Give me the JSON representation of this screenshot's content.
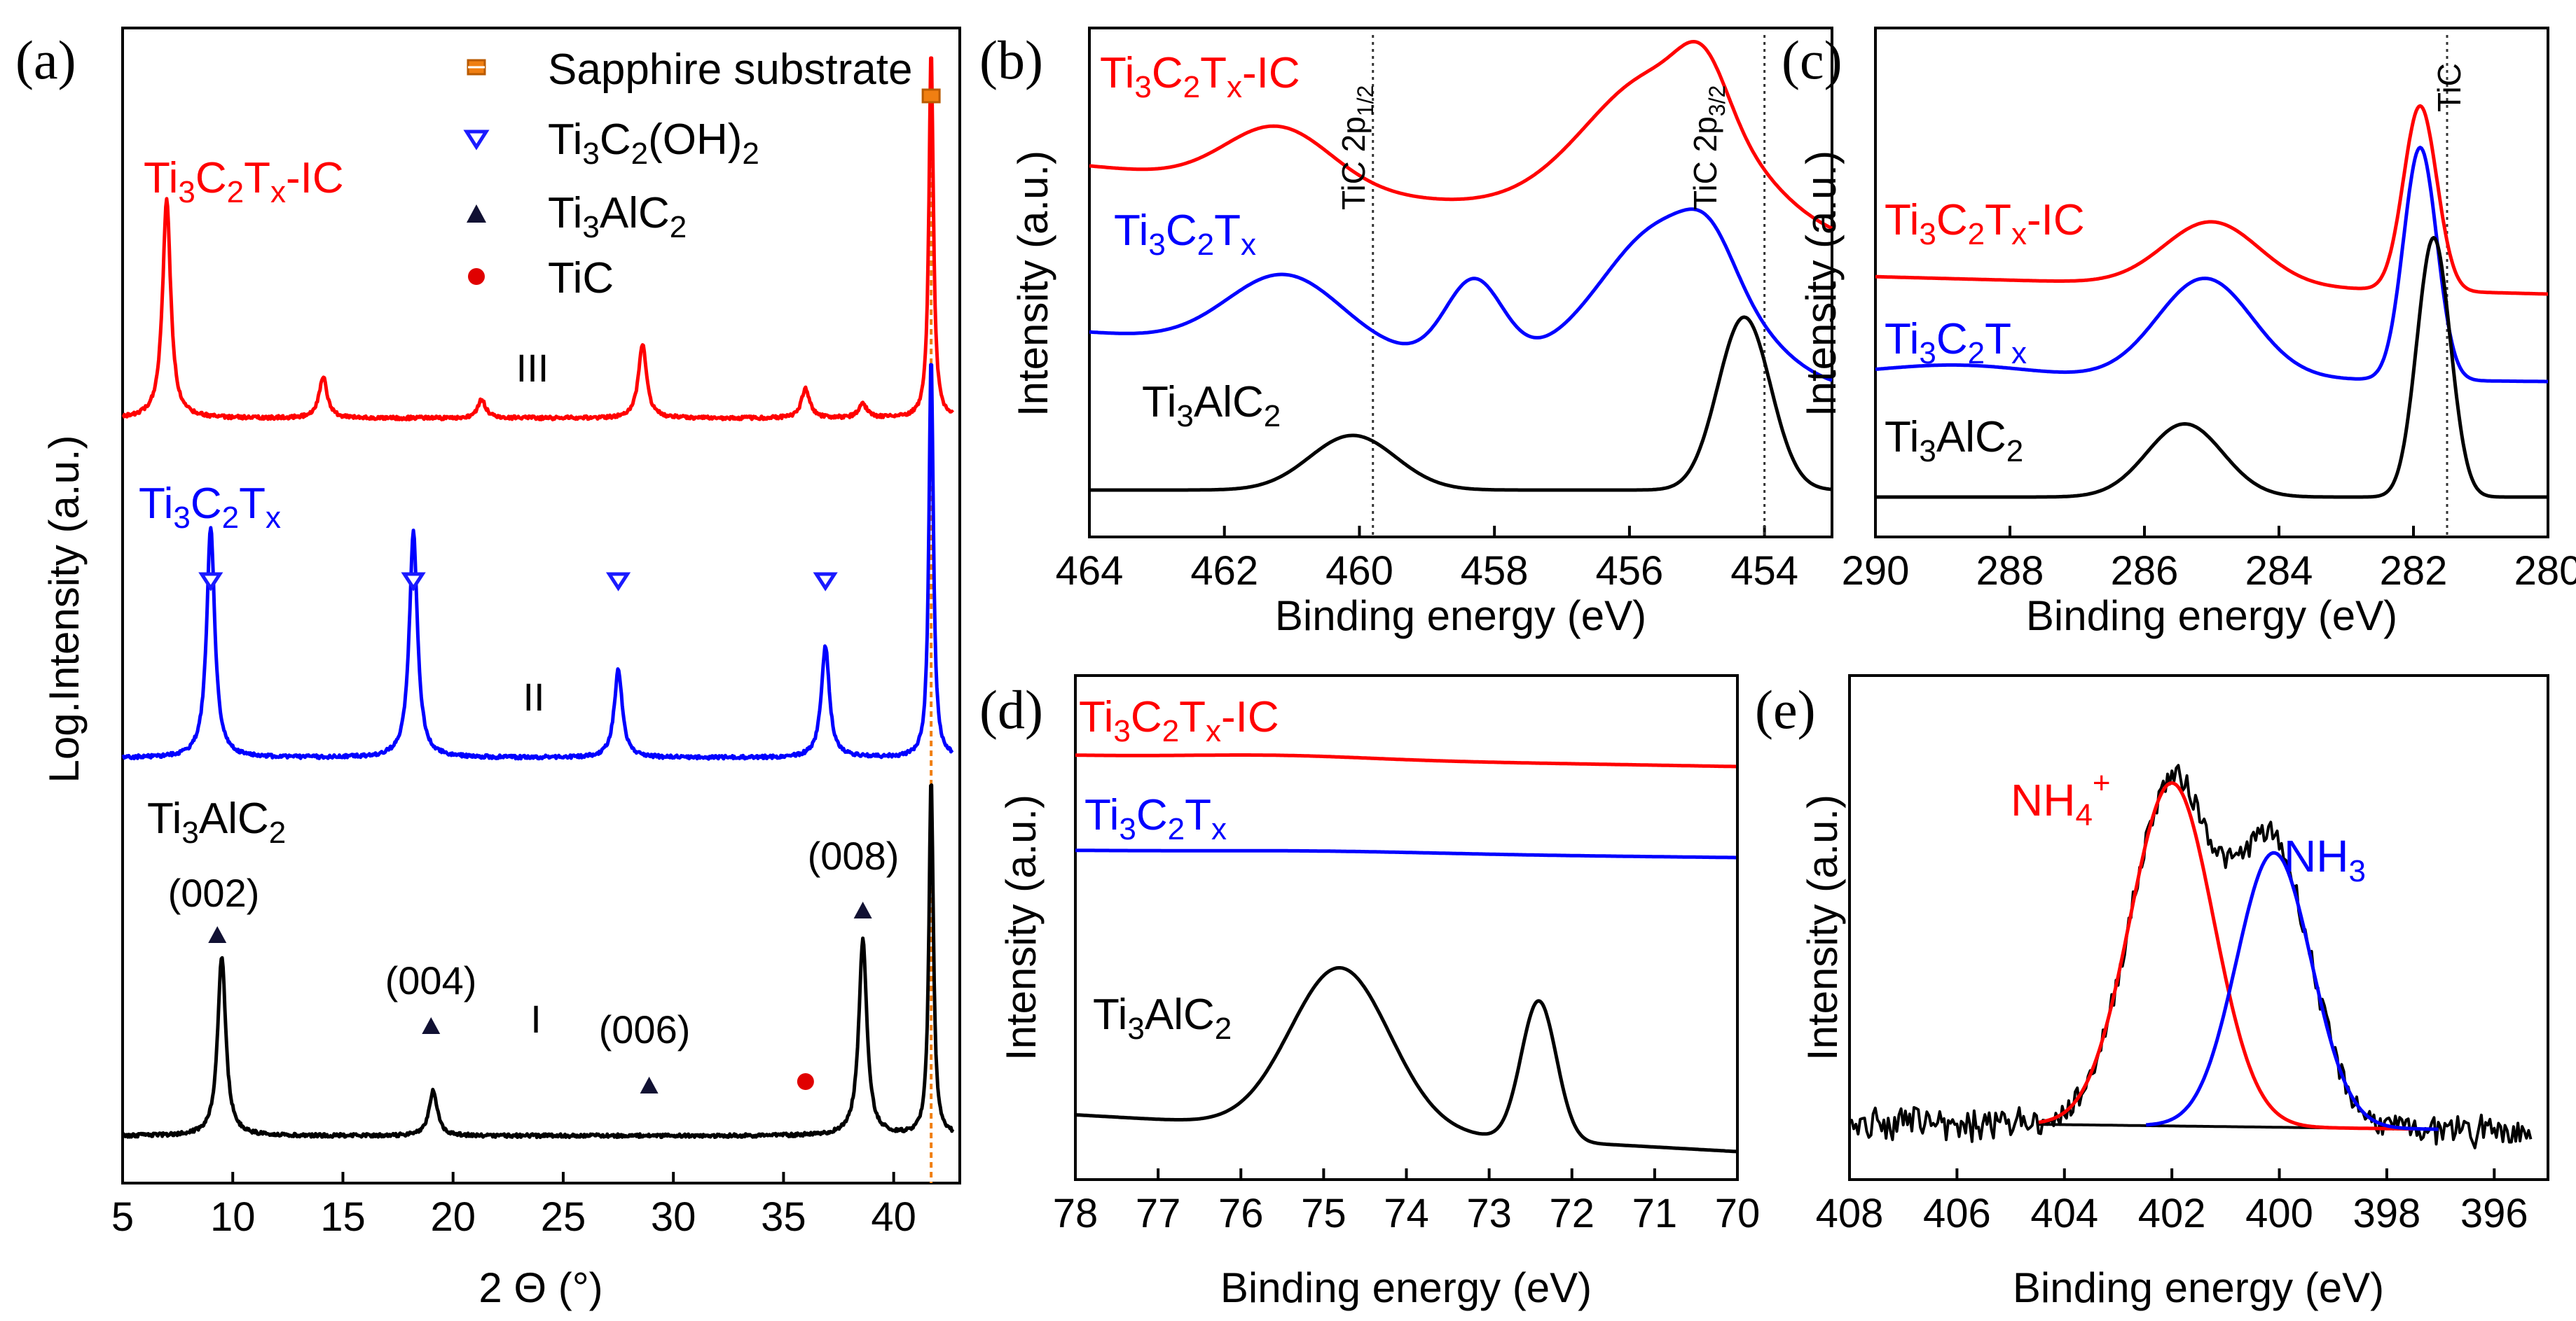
{
  "chart_data": [
    {
      "panel_label": "(a)",
      "type": "line",
      "title": "",
      "xlabel": "2 Θ (°)",
      "ylabel": "Log.Intensity (a.u.)",
      "xlim": [
        5,
        43
      ],
      "xticks": [
        "5",
        "10",
        "15",
        "20",
        "25",
        "30",
        "35",
        "40"
      ],
      "legend": [
        {
          "marker": "square",
          "label": "Sapphire substrate",
          "color": "#f07f12"
        },
        {
          "marker": "triangle-down-open",
          "label": "Ti3C2(OH)2",
          "color": "#1a1aff"
        },
        {
          "marker": "triangle-up",
          "label": "Ti3AlC2",
          "color": "#111133"
        },
        {
          "marker": "circle",
          "label": "TiC",
          "color": "#e00000"
        }
      ],
      "series": [
        {
          "name": "Ti3C2Tx-IC",
          "label_main": "Ti",
          "roman": "III",
          "color": "#ff0000",
          "offset": 2,
          "peaks": [
            {
              "x": 7.0,
              "h": 0.95
            },
            {
              "x": 14.1,
              "h": 0.18
            },
            {
              "x": 21.3,
              "h": 0.08
            },
            {
              "x": 28.6,
              "h": 0.32
            },
            {
              "x": 36.0,
              "h": 0.13
            },
            {
              "x": 38.6,
              "h": 0.06
            },
            {
              "x": 41.7,
              "h": 1.6
            }
          ]
        },
        {
          "name": "Ti3C2Tx",
          "roman": "II",
          "color": "#0000ff",
          "offset": 1,
          "peaks": [
            {
              "x": 9.0,
              "h": 1.0
            },
            {
              "x": 18.2,
              "h": 0.98
            },
            {
              "x": 27.5,
              "h": 0.38
            },
            {
              "x": 36.9,
              "h": 0.48
            },
            {
              "x": 41.7,
              "h": 1.75
            }
          ]
        },
        {
          "name": "Ti3AlC2",
          "roman": "I",
          "color": "#000000",
          "offset": 0,
          "peaks": [
            {
              "x": 9.5,
              "h": 0.78
            },
            {
              "x": 19.1,
              "h": 0.2
            },
            {
              "x": 38.6,
              "h": 0.85
            },
            {
              "x": 41.7,
              "h": 1.55
            }
          ]
        }
      ],
      "markers": {
        "open_triangles_II": [
          9.0,
          18.2,
          27.5,
          36.9
        ],
        "filled_triangles_I": [
          {
            "x": 9.3,
            "label": "(002)"
          },
          {
            "x": 19.0,
            "label": "(004)"
          },
          {
            "x": 28.9,
            "label": "(006)"
          },
          {
            "x": 38.6,
            "label": "(008)"
          }
        ],
        "TiC_circle": 36.0,
        "sapphire_line": 41.7
      }
    },
    {
      "panel_label": "(b)",
      "type": "line",
      "xlabel": "Binding energy (eV)",
      "ylabel": "Intensity (a.u.)",
      "xlim": [
        464,
        453
      ],
      "xticks": [
        "464",
        "462",
        "460",
        "458",
        "456",
        "454"
      ],
      "ref_lines": [
        {
          "x": 459.8,
          "text": "TiC 2p",
          "sub": "1/2"
        },
        {
          "x": 454.0,
          "text": "TiC 2p",
          "sub": "3/2"
        }
      ],
      "series": [
        {
          "name": "Ti3C2Tx-IC",
          "color": "#ff0000",
          "offset": 2.0,
          "peaks": [
            {
              "x": 461.2,
              "w": 1.1,
              "h": 0.35
            },
            {
              "x": 459.3,
              "w": 1.0,
              "h": 0.0
            },
            {
              "x": 455.5,
              "w": 1.6,
              "h": 0.9
            },
            {
              "x": 454.9,
              "w": 0.5,
              "h": 0.3
            }
          ]
        },
        {
          "name": "Ti3C2Tx",
          "color": "#0000ff",
          "offset": 1.0,
          "peaks": [
            {
              "x": 461.1,
              "w": 1.2,
              "h": 0.45
            },
            {
              "x": 458.3,
              "w": 0.6,
              "h": 0.5
            },
            {
              "x": 455.4,
              "w": 1.4,
              "h": 0.95
            },
            {
              "x": 454.8,
              "w": 0.5,
              "h": 0.2
            }
          ]
        },
        {
          "name": "Ti3AlC2",
          "color": "#000000",
          "offset": 0,
          "peaks": [
            {
              "x": 460.1,
              "w": 0.9,
              "h": 0.3
            },
            {
              "x": 454.3,
              "w": 0.55,
              "h": 0.95
            }
          ]
        }
      ]
    },
    {
      "panel_label": "(c)",
      "type": "line",
      "xlabel": "Binding energy (eV)",
      "ylabel": "Intensity (a.u.)",
      "xlim": [
        290,
        280
      ],
      "xticks": [
        "290",
        "288",
        "286",
        "284",
        "282",
        "280"
      ],
      "ref_lines": [
        {
          "x": 281.5,
          "text": "TiC"
        }
      ],
      "series": [
        {
          "name": "Ti3C2Tx-IC",
          "color": "#ff0000",
          "offset": 2.0,
          "peaks": [
            {
              "x": 285.0,
              "w": 1.0,
              "h": 0.55
            },
            {
              "x": 281.9,
              "w": 0.35,
              "h": 1.6
            }
          ]
        },
        {
          "name": "Ti3C2Tx",
          "color": "#0000ff",
          "offset": 1.0,
          "peaks": [
            {
              "x": 288.8,
              "w": 1.5,
              "h": 0.08
            },
            {
              "x": 285.1,
              "w": 1.0,
              "h": 0.75
            },
            {
              "x": 281.9,
              "w": 0.35,
              "h": 1.75
            }
          ]
        },
        {
          "name": "Ti3AlC2",
          "color": "#000000",
          "offset": 0,
          "peaks": [
            {
              "x": 285.4,
              "w": 0.8,
              "h": 0.55
            },
            {
              "x": 281.7,
              "w": 0.35,
              "h": 1.95
            }
          ]
        }
      ]
    },
    {
      "panel_label": "(d)",
      "type": "line",
      "xlabel": "Binding energy (eV)",
      "ylabel": "Intensity (a.u.)",
      "xlim": [
        78,
        70
      ],
      "xticks": [
        "78",
        "77",
        "76",
        "75",
        "74",
        "73",
        "72",
        "71",
        "70"
      ],
      "series": [
        {
          "name": "Ti3C2Tx-IC",
          "color": "#ff0000",
          "offset": 2.4,
          "peaks": [
            {
              "x": 75.5,
              "w": 1.5,
              "h": 0.05
            }
          ]
        },
        {
          "name": "Ti3C2Tx",
          "color": "#0000ff",
          "offset": 1.55,
          "peaks": [
            {
              "x": 75.0,
              "w": 2.0,
              "h": 0.03
            }
          ]
        },
        {
          "name": "Ti3AlC2",
          "color": "#000000",
          "offset": 0,
          "peaks": [
            {
              "x": 74.8,
              "w": 0.85,
              "h": 1.1
            },
            {
              "x": 72.4,
              "w": 0.3,
              "h": 0.95
            }
          ]
        }
      ]
    },
    {
      "panel_label": "(e)",
      "type": "line",
      "xlabel": "Binding energy (eV)",
      "ylabel": "Intensity (a.u.)",
      "xlim": [
        408,
        395
      ],
      "xticks": [
        "408",
        "406",
        "404",
        "402",
        "400",
        "398",
        "396"
      ],
      "series": [
        {
          "name": "NH4+",
          "color": "#ff0000",
          "center": 402.0,
          "width": 1.0,
          "height": 1.0
        },
        {
          "name": "NH3",
          "color": "#0000ff",
          "center": 400.1,
          "width": 0.9,
          "height": 0.8
        },
        {
          "name": "experimental",
          "color": "#000000"
        },
        {
          "name": "background",
          "color": "#000000"
        }
      ],
      "annotations": [
        {
          "text": "NH",
          "sub": "4",
          "sup": "+",
          "color": "#ff0000"
        },
        {
          "text": "NH",
          "sub": "3",
          "color": "#0000ff"
        }
      ]
    }
  ],
  "labels": {
    "red_main": "Ti",
    "red_sub1": "3",
    "red_c": "C",
    "red_sub2": "2",
    "red_t": "T",
    "red_sub3": "x",
    "red_tail": "-IC",
    "blue_main": "Ti",
    "blue_sub1": "3",
    "blue_c": "C",
    "blue_sub2": "2",
    "blue_t": "T",
    "blue_sub3": "x",
    "black_main": "Ti",
    "black_sub1": "3",
    "black_al": "AlC",
    "black_sub2": "2",
    "roman_I": "I",
    "roman_II": "II",
    "roman_III": "III",
    "leg_sapphire": "Sapphire substrate",
    "leg_ti3c2oh": "Ti",
    "leg_ti3c2oh_s1": "3",
    "leg_ti3c2oh_c": "C",
    "leg_ti3c2oh_s2": "2",
    "leg_ti3c2oh_tail": "(OH)",
    "leg_ti3c2oh_s3": "2",
    "leg_ti3alc2": "Ti",
    "leg_ti3alc2_s1": "3",
    "leg_ti3alc2_al": "AlC",
    "leg_ti3alc2_s2": "2",
    "leg_tic": "TiC",
    "peak_002": "(002)",
    "peak_004": "(004)",
    "peak_006": "(006)",
    "peak_008": "(008)",
    "ref_tic_2p": "TiC 2p",
    "ref_12": "1/2",
    "ref_32": "3/2",
    "ref_tic": "TiC",
    "nh4_main": "NH",
    "nh4_sub": "4",
    "nh4_sup": "+",
    "nh3_main": "NH",
    "nh3_sub": "3"
  }
}
